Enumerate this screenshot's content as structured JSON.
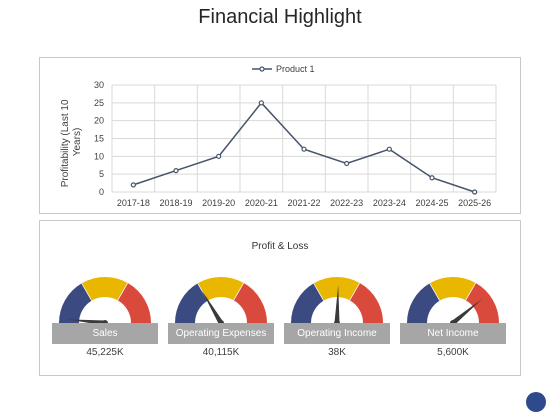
{
  "page": {
    "title": "Financial Highlight"
  },
  "chart_data": {
    "type": "line",
    "categories": [
      "2017-18",
      "2018-19",
      "2019-20",
      "2020-21",
      "2021-22",
      "2022-23",
      "2023-24",
      "2024-25",
      "2025-26"
    ],
    "series": [
      {
        "name": "Product 1",
        "values": [
          2,
          6,
          10,
          25,
          12,
          8,
          12,
          4,
          0
        ]
      }
    ],
    "ylabel": "Profitability (Last 10 Years)",
    "ylim": [
      0,
      30
    ],
    "yticks": [
      0,
      5,
      10,
      15,
      20,
      25,
      30
    ],
    "grid": true,
    "legend": "top-center",
    "colors": {
      "line": "#44546a",
      "marker_fill": "#ffffff"
    }
  },
  "profit_loss": {
    "title": "Profit & Loss",
    "gauge_colors": {
      "low": "#3b4a80",
      "mid": "#e9b600",
      "high": "#d94a3d",
      "needle": "#3a3a3a"
    },
    "gauges": [
      {
        "label": "Sales",
        "value": "45,225K",
        "needle": 0.03
      },
      {
        "label": "Operating Expenses",
        "value": "40,115K",
        "needle": 0.33
      },
      {
        "label": "Operating Income",
        "value": "38K",
        "needle": 0.51
      },
      {
        "label": "Net Income",
        "value": "5,600K",
        "needle": 0.78
      }
    ]
  }
}
